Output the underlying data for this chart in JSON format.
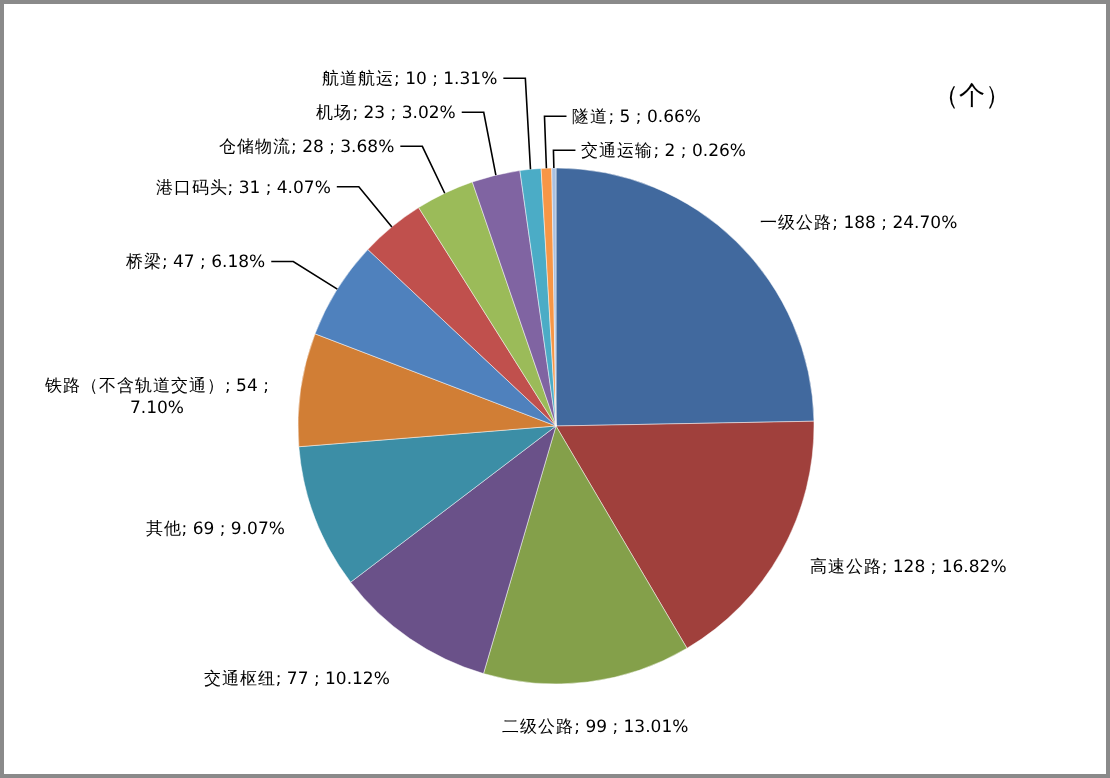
{
  "chart_data": {
    "type": "pie",
    "categories": [
      "一级公路",
      "高速公路",
      "二级公路",
      "交通枢纽",
      "其他",
      "铁路（不含轨道交通）",
      "桥梁",
      "港口码头",
      "仓储物流",
      "机场",
      "航道航运",
      "隧道",
      "交通运输"
    ],
    "values": [
      188,
      128,
      99,
      77,
      69,
      54,
      47,
      31,
      28,
      23,
      10,
      5,
      2
    ],
    "value_labels": [
      "; 188 ; 24.70%",
      "; 128 ; 16.82%",
      "; 99 ; 13.01%",
      "; 77 ; 10.12%",
      "; 69 ; 9.07%",
      "; 54 ; 7.10%",
      "; 47 ; 6.18%",
      "; 31 ; 4.07%",
      "; 28 ; 3.68%",
      "; 23 ; 3.02%",
      "; 10 ; 1.31%",
      "; 5 ; 0.66%",
      "; 2 ; 0.26%"
    ],
    "colors": [
      "#41699e",
      "#a0403c",
      "#84a04a",
      "#6a5189",
      "#3c8ea6",
      "#d17e35",
      "#4f81bd",
      "#c0504d",
      "#9bbb59",
      "#8064a2",
      "#4bacc6",
      "#f79646",
      "#a9c0e0"
    ],
    "annotations": [
      "（个）"
    ],
    "legend": false
  }
}
